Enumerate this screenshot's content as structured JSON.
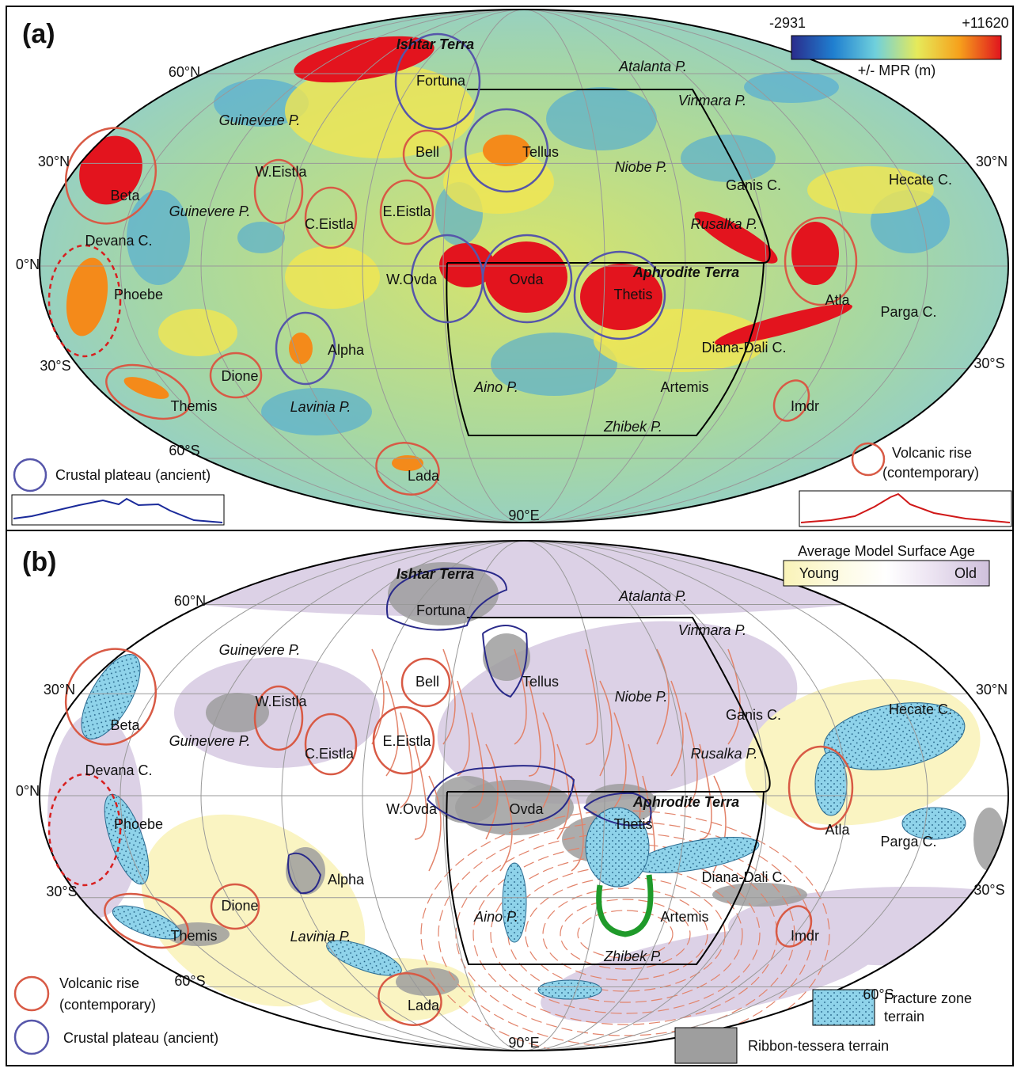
{
  "panels": [
    {
      "label": "(a)",
      "colorbar": {
        "min": "-2931",
        "max": "+11620",
        "title": "+/- MPR (m)"
      },
      "features": [
        "Ishtar Terra",
        "Atalanta P.",
        "Fortuna",
        "Vinmara P.",
        "Guinevere P.",
        "Bell",
        "Tellus",
        "Niobe P.",
        "Hecate C.",
        "Ganis C.",
        "W.Eistla",
        "Beta",
        "Guinevere P.",
        "C.Eistla",
        "E.Eistla",
        "Rusalka P.",
        "Devana C.",
        "W.Ovda",
        "Ovda",
        "Aphrodite Terra",
        "Thetis",
        "Atla",
        "Phoebe",
        "Parga C.",
        "Alpha",
        "Diana-Dali C.",
        "Dione",
        "Themis",
        "Lavinia P.",
        "Aino P.",
        "Artemis",
        "Imdr",
        "Zhibek P.",
        "Lada"
      ],
      "grid_labels": [
        "60°N",
        "30°N",
        "30°N",
        "0°N",
        "30°S",
        "30°S",
        "60°S",
        "90°E"
      ],
      "legend": {
        "plateau": "Crustal plateau (ancient)",
        "rise": [
          "Volcanic rise",
          "(contemporary)"
        ]
      }
    },
    {
      "label": "(b)",
      "age_legend": {
        "title": "Average Model Surface Age",
        "young": "Young",
        "old": "Old"
      },
      "features": [
        "Ishtar Terra",
        "Atalanta P.",
        "Fortuna",
        "Vinmara P.",
        "Guinevere P.",
        "Bell",
        "Tellus",
        "Niobe P.",
        "Hecate C.",
        "Ganis C.",
        "W.Eistla",
        "Beta",
        "Guinevere P.",
        "C.Eistla",
        "E.Eistla",
        "Rusalka P.",
        "Devana C.",
        "W.Ovda",
        "Ovda",
        "Aphrodite Terra",
        "Thetis",
        "Atla",
        "Phoebe",
        "Parga C.",
        "Alpha",
        "Diana-Dali C.",
        "Dione",
        "Themis",
        "Lavinia P.",
        "Aino P.",
        "Artemis",
        "Imdr",
        "Zhibek P.",
        "Lada"
      ],
      "grid_labels": [
        "60°N",
        "30°N",
        "30°N",
        "0°N",
        "30°S",
        "30°S",
        "60°S",
        "60°S",
        "90°E"
      ],
      "legend": {
        "rise": [
          "Volcanic rise",
          "(contemporary)"
        ],
        "plateau": "Crustal plateau (ancient)",
        "fracture": [
          "Fracture zone",
          "terrain"
        ],
        "tessera": "Ribbon-tessera terrain"
      }
    }
  ]
}
